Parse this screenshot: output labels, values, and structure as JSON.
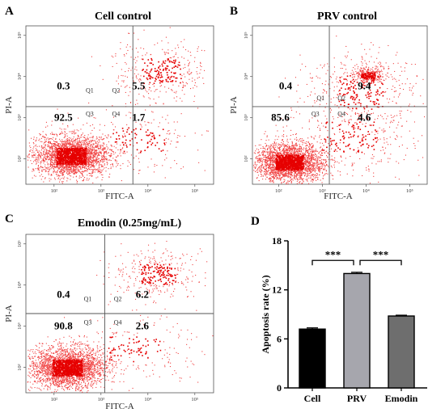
{
  "chart_data": [
    {
      "panel": "A",
      "type": "scatter",
      "title": "Cell control",
      "xlabel": "FITC-A",
      "ylabel": "PI-A",
      "x_ticks": [
        "10²",
        "10³",
        "10⁴",
        "10⁵"
      ],
      "y_ticks": [
        "10²",
        "10³",
        "10⁴",
        "10⁵"
      ],
      "quadrants": [
        {
          "name": "Q1",
          "value": "0.3"
        },
        {
          "name": "Q2",
          "value": "5.5"
        },
        {
          "name": "Q3",
          "value": "92.5"
        },
        {
          "name": "Q4",
          "value": "1.7"
        }
      ]
    },
    {
      "panel": "B",
      "type": "scatter",
      "title": "PRV control",
      "xlabel": "FITC-A",
      "ylabel": "PI-A",
      "x_ticks": [
        "10²",
        "10³",
        "10⁴",
        "10⁵"
      ],
      "y_ticks": [
        "10²",
        "10³",
        "10⁴",
        "10⁵"
      ],
      "quadrants": [
        {
          "name": "Q1",
          "value": "0.4"
        },
        {
          "name": "Q2",
          "value": "9.4"
        },
        {
          "name": "Q3",
          "value": "85.6"
        },
        {
          "name": "Q4",
          "value": "4.6"
        }
      ]
    },
    {
      "panel": "C",
      "type": "scatter",
      "title": "Emodin (0.25mg/mL)",
      "xlabel": "FITC-A",
      "ylabel": "PI-A",
      "x_ticks": [
        "10²",
        "10³",
        "10⁴",
        "10⁵"
      ],
      "y_ticks": [
        "10²",
        "10³",
        "10⁴",
        "10⁵"
      ],
      "quadrants": [
        {
          "name": "Q1",
          "value": "0.4"
        },
        {
          "name": "Q2",
          "value": "6.2"
        },
        {
          "name": "Q3",
          "value": "90.8"
        },
        {
          "name": "Q4",
          "value": "2.6"
        }
      ]
    },
    {
      "panel": "D",
      "type": "bar",
      "title": "",
      "xlabel": "",
      "ylabel": "Apoptosis rate (%)",
      "categories": [
        "Cell",
        "PRV",
        "Emodin"
      ],
      "values": [
        7.2,
        14.0,
        8.8
      ],
      "errors": [
        0.15,
        0.15,
        0.1
      ],
      "colors": [
        "#000000",
        "#a6a6ad",
        "#6e6e6e"
      ],
      "ylim": [
        0,
        18
      ],
      "y_ticks": [
        0,
        6,
        12,
        18
      ],
      "significance": [
        {
          "from": "Cell",
          "to": "PRV",
          "label": "***"
        },
        {
          "from": "PRV",
          "to": "Emodin",
          "label": "***"
        }
      ]
    }
  ]
}
